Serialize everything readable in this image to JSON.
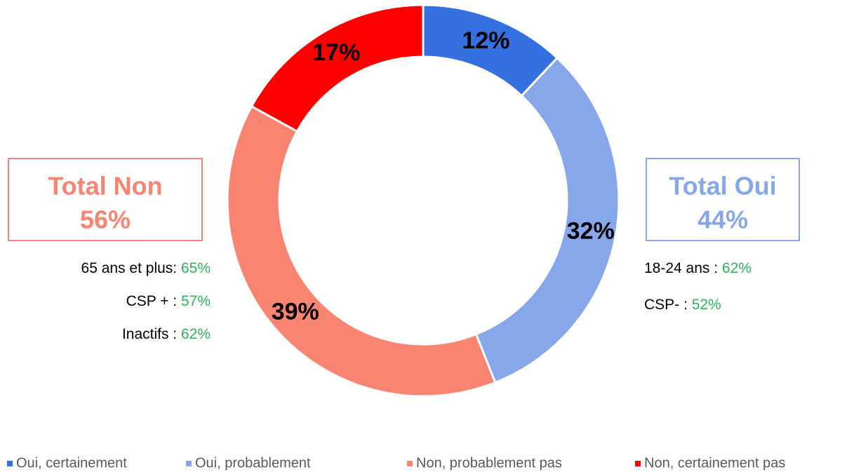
{
  "chart_data": {
    "type": "donut",
    "categories": [
      "Oui, certainement",
      "Oui, probablement",
      "Non, probablement pas",
      "Non, certainement pas"
    ],
    "values": [
      12,
      32,
      39,
      17
    ],
    "value_labels": [
      "12%",
      "32%",
      "39%",
      "17%"
    ],
    "colors": [
      "#3470e0",
      "#86a8ea",
      "#fa8472",
      "#ff0000"
    ],
    "legend": "bottom",
    "annotations": [
      {
        "title": "Total Non",
        "total": "56%",
        "color": "#fa8472",
        "side": "left",
        "details": [
          {
            "label": "65 ans et plus: ",
            "value": "65%"
          },
          {
            "label": "CSP + : ",
            "value": "57%"
          },
          {
            "label": "Inactifs : ",
            "value": "62%"
          }
        ]
      },
      {
        "title": "Total Oui",
        "total": "44%",
        "color": "#86a8ea",
        "side": "right",
        "details": [
          {
            "label": "18-24 ans : ",
            "value": "62%"
          },
          {
            "label": "CSP- : ",
            "value": "52%"
          }
        ]
      }
    ]
  }
}
